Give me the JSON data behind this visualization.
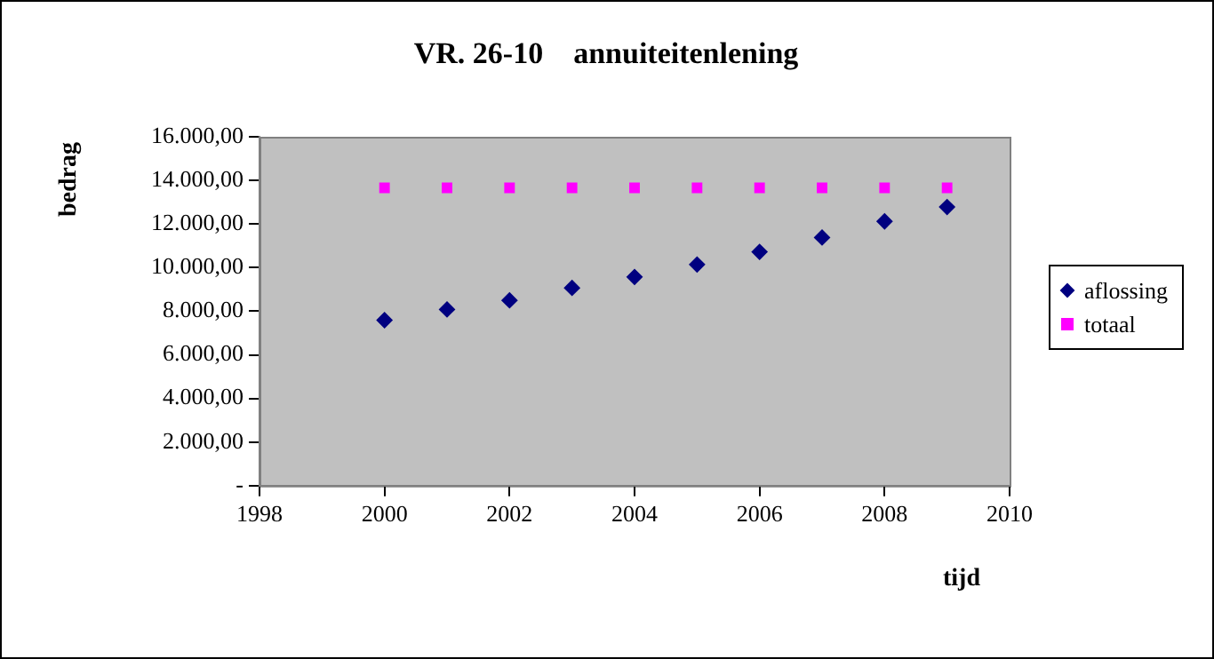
{
  "chart_data": {
    "type": "scatter",
    "title": "VR. 26-10    annuiteitenlening",
    "xlabel": "tijd",
    "ylabel": "bedrag",
    "x": [
      2000,
      2001,
      2002,
      2003,
      2004,
      2005,
      2006,
      2007,
      2008,
      2009
    ],
    "series": [
      {
        "name": "aflossing",
        "color": "#000080",
        "marker": "diamond",
        "values": [
          7590,
          8080,
          8500,
          9070,
          9570,
          10140,
          10720,
          11380,
          12120,
          12780
        ]
      },
      {
        "name": "totaal",
        "color": "#ff00ff",
        "marker": "square",
        "values": [
          13660,
          13660,
          13660,
          13660,
          13660,
          13660,
          13660,
          13660,
          13660,
          13660
        ]
      }
    ],
    "xlim": [
      1998,
      2010
    ],
    "xticks": [
      1998,
      2000,
      2002,
      2004,
      2006,
      2008,
      2010
    ],
    "ylim": [
      0,
      16000
    ],
    "yticks": [
      {
        "value": 0,
        "label": "-"
      },
      {
        "value": 2000,
        "label": "2.000,00"
      },
      {
        "value": 4000,
        "label": "4.000,00"
      },
      {
        "value": 6000,
        "label": "6.000,00"
      },
      {
        "value": 8000,
        "label": "8.000,00"
      },
      {
        "value": 10000,
        "label": "10.000,00"
      },
      {
        "value": 12000,
        "label": "12.000,00"
      },
      {
        "value": 14000,
        "label": "14.000,00"
      },
      {
        "value": 16000,
        "label": "16.000,00"
      }
    ],
    "grid": false,
    "legend": "right"
  }
}
